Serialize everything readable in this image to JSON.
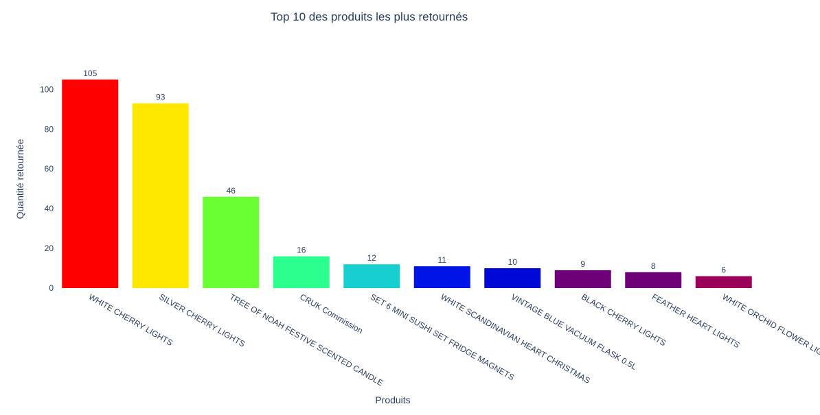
{
  "chart_data": {
    "type": "bar",
    "title": "Top 10 des produits les plus retournés",
    "xlabel": "Produits",
    "ylabel": "Quantité retournée",
    "categories": [
      "WHITE CHERRY LIGHTS",
      "SILVER CHERRY LIGHTS",
      "TREE OF NOAH FESTIVE SCENTED CANDLE",
      "CRUK Commission",
      "SET 6 MINI SUSHI SET FRIDGE MAGNETS",
      "WHITE SCANDINAVIAN HEART CHRISTMAS",
      "VINTAGE BLUE VACUUM FLASK 0.5L",
      "BLACK CHERRY LIGHTS",
      "FEATHER HEART LIGHTS",
      "WHITE ORCHID FLOWER LIGHTS"
    ],
    "values": [
      105,
      93,
      46,
      16,
      12,
      11,
      10,
      9,
      8,
      6
    ],
    "colors": [
      "#ff0000",
      "#ffe800",
      "#6aff33",
      "#2bff8f",
      "#17cfcf",
      "#0014e8",
      "#0008d8",
      "#6e0078",
      "#6e0078",
      "#9a0058"
    ],
    "ylim": [
      0,
      110.5
    ],
    "yticks": [
      0,
      20,
      40,
      60,
      80,
      100
    ],
    "grid": false,
    "legend": "none"
  }
}
